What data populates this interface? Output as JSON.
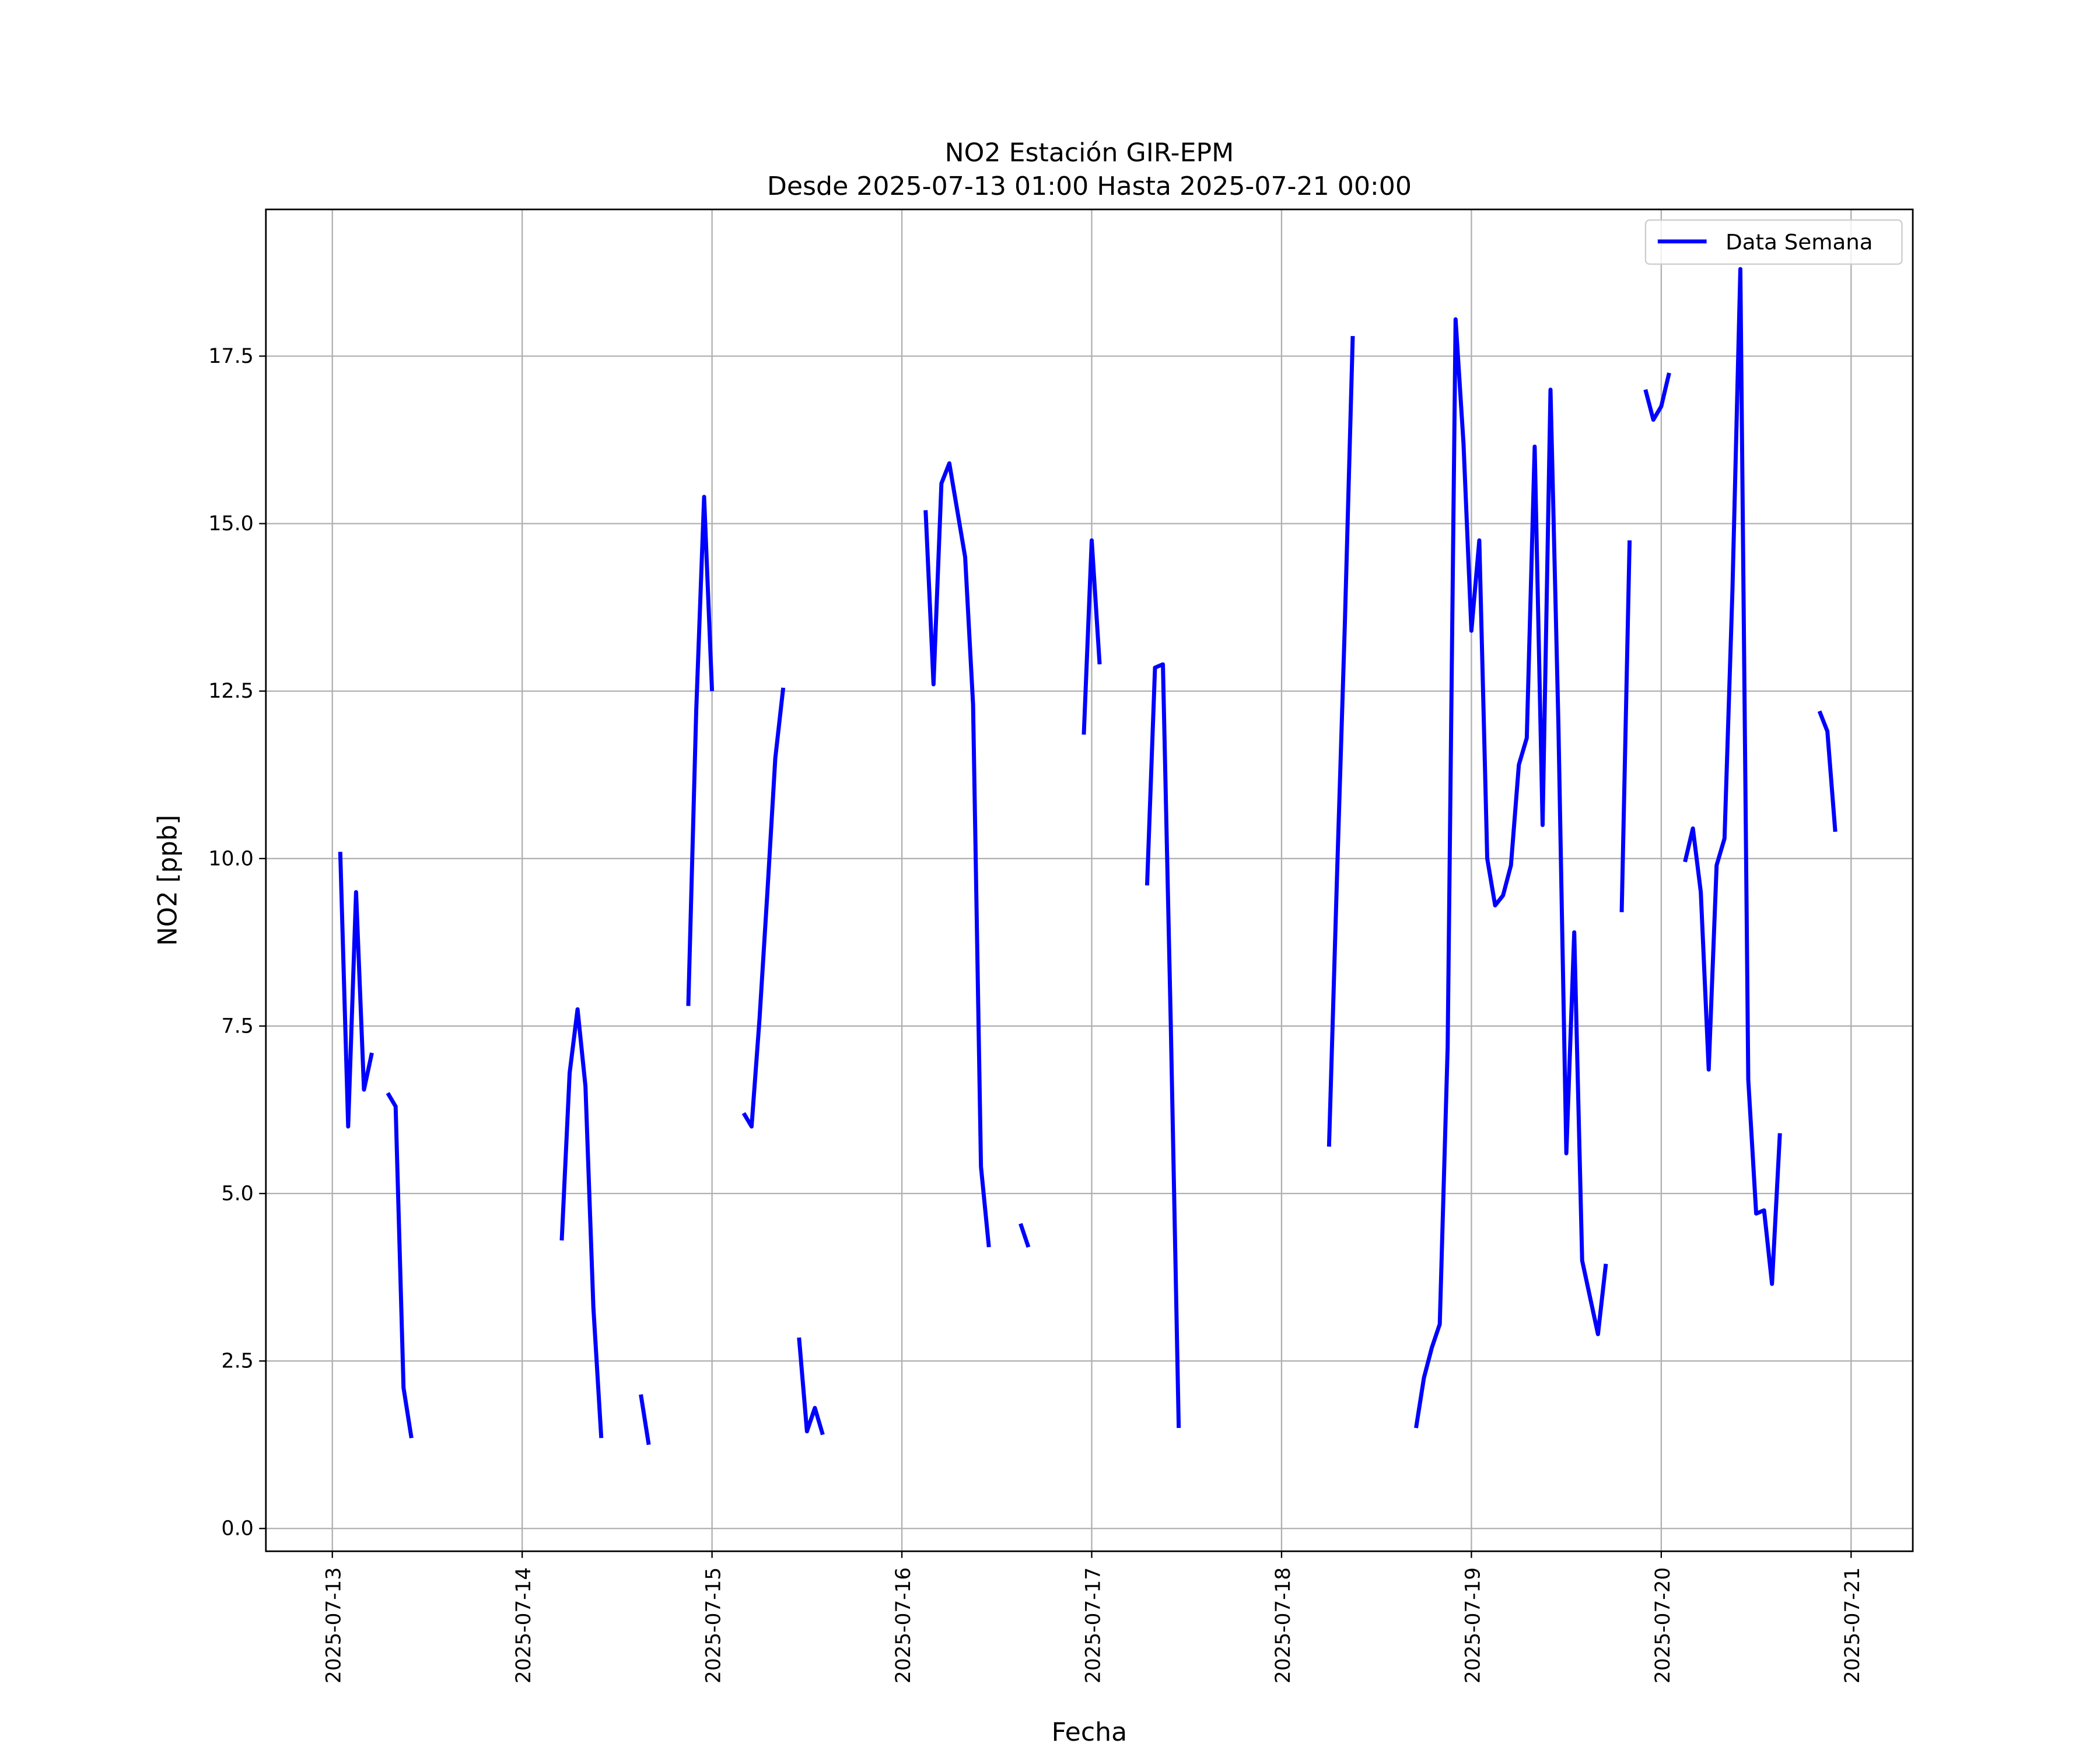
{
  "chart_data": {
    "type": "line",
    "title": "NO2 Estación GIR-EPM",
    "subtitle": "Desde 2025-07-13 01:00 Hasta 2025-07-21 00:00",
    "x_label": "Fecha",
    "y_label": "NO2 [ppb]",
    "grid": true,
    "legend": "upper right",
    "x": [
      "2025-07-13 01:00",
      "2025-07-13 02:00",
      "2025-07-13 03:00",
      "2025-07-13 04:00",
      "2025-07-13 05:00",
      "2025-07-13 06:00",
      "2025-07-13 07:00",
      "2025-07-13 08:00",
      "2025-07-13 09:00",
      "2025-07-13 10:00",
      "2025-07-13 11:00",
      "2025-07-14 05:00",
      "2025-07-14 06:00",
      "2025-07-14 07:00",
      "2025-07-14 08:00",
      "2025-07-14 09:00",
      "2025-07-14 10:00",
      "2025-07-14 11:00",
      "2025-07-14 15:00",
      "2025-07-14 16:00",
      "2025-07-14 17:00",
      "2025-07-14 21:00",
      "2025-07-14 22:00",
      "2025-07-14 23:00",
      "2025-07-15 00:00",
      "2025-07-15 01:00",
      "2025-07-15 04:00",
      "2025-07-15 05:00",
      "2025-07-15 06:00",
      "2025-07-15 07:00",
      "2025-07-15 08:00",
      "2025-07-15 09:00",
      "2025-07-15 10:00",
      "2025-07-15 11:00",
      "2025-07-15 12:00",
      "2025-07-15 13:00",
      "2025-07-15 14:00",
      "2025-07-15 15:00",
      "2025-07-16 03:00",
      "2025-07-16 04:00",
      "2025-07-16 05:00",
      "2025-07-16 06:00",
      "2025-07-16 07:00",
      "2025-07-16 08:00",
      "2025-07-16 09:00",
      "2025-07-16 10:00",
      "2025-07-16 11:00",
      "2025-07-16 12:00",
      "2025-07-16 15:00",
      "2025-07-16 16:00",
      "2025-07-16 17:00",
      "2025-07-16 23:00",
      "2025-07-17 00:00",
      "2025-07-17 01:00",
      "2025-07-17 02:00",
      "2025-07-17 07:00",
      "2025-07-17 08:00",
      "2025-07-17 09:00",
      "2025-07-17 10:00",
      "2025-07-17 11:00",
      "2025-07-17 12:00",
      "2025-07-18 06:00",
      "2025-07-18 07:00",
      "2025-07-18 08:00",
      "2025-07-18 09:00",
      "2025-07-18 10:00",
      "2025-07-18 17:00",
      "2025-07-18 18:00",
      "2025-07-18 19:00",
      "2025-07-18 20:00",
      "2025-07-18 21:00",
      "2025-07-18 22:00",
      "2025-07-18 23:00",
      "2025-07-19 00:00",
      "2025-07-19 01:00",
      "2025-07-19 02:00",
      "2025-07-19 03:00",
      "2025-07-19 04:00",
      "2025-07-19 05:00",
      "2025-07-19 06:00",
      "2025-07-19 07:00",
      "2025-07-19 08:00",
      "2025-07-19 09:00",
      "2025-07-19 10:00",
      "2025-07-19 11:00",
      "2025-07-19 12:00",
      "2025-07-19 13:00",
      "2025-07-19 14:00",
      "2025-07-19 15:00",
      "2025-07-19 16:00",
      "2025-07-19 17:00",
      "2025-07-19 18:00",
      "2025-07-19 19:00",
      "2025-07-19 20:00",
      "2025-07-19 21:00",
      "2025-07-19 22:00",
      "2025-07-19 23:00",
      "2025-07-20 00:00",
      "2025-07-20 01:00",
      "2025-07-20 02:00",
      "2025-07-20 03:00",
      "2025-07-20 04:00",
      "2025-07-20 05:00",
      "2025-07-20 06:00",
      "2025-07-20 07:00",
      "2025-07-20 08:00",
      "2025-07-20 09:00",
      "2025-07-20 10:00",
      "2025-07-20 11:00",
      "2025-07-20 12:00",
      "2025-07-20 13:00",
      "2025-07-20 14:00",
      "2025-07-20 15:00",
      "2025-07-20 16:00",
      "2025-07-20 20:00",
      "2025-07-20 21:00",
      "2025-07-20 22:00"
    ],
    "series": [
      {
        "name": "Data Semana",
        "color": "#0000ff",
        "values": [
          10.1,
          6.0,
          9.5,
          6.55,
          7.1,
          null,
          6.5,
          6.3,
          2.1,
          1.35,
          null,
          4.3,
          6.8,
          7.75,
          6.6,
          3.3,
          1.35,
          null,
          2.0,
          1.25,
          null,
          7.8,
          12.2,
          15.4,
          12.5,
          null,
          6.2,
          6.0,
          7.6,
          9.5,
          11.5,
          12.55,
          null,
          2.85,
          1.45,
          1.8,
          1.4,
          null,
          15.2,
          12.6,
          15.6,
          15.9,
          15.2,
          14.5,
          12.3,
          5.4,
          4.2,
          null,
          4.55,
          4.2,
          null,
          11.85,
          14.75,
          12.9,
          null,
          9.6,
          12.85,
          12.9,
          7.5,
          1.5,
          null,
          5.7,
          9.7,
          13.5,
          17.8,
          null,
          1.5,
          2.25,
          2.7,
          3.05,
          7.2,
          18.05,
          16.2,
          13.4,
          14.75,
          10.0,
          9.3,
          9.45,
          9.9,
          11.4,
          11.8,
          16.15,
          10.5,
          17.0,
          12.0,
          5.6,
          8.9,
          4.0,
          3.45,
          2.9,
          3.95,
          null,
          9.2,
          14.75,
          null,
          17.0,
          16.55,
          16.75,
          17.25,
          null,
          9.95,
          10.45,
          9.5,
          6.85,
          9.9,
          10.3,
          14.0,
          18.8,
          6.7,
          4.7,
          4.75,
          3.65,
          5.9,
          null,
          12.2,
          11.9,
          10.4
        ]
      }
    ],
    "xlim": [
      "2025-07-12 15:36",
      "2025-07-21 07:48"
    ],
    "xticks": [
      "2025-07-13",
      "2025-07-14",
      "2025-07-15",
      "2025-07-16",
      "2025-07-17",
      "2025-07-18",
      "2025-07-19",
      "2025-07-20",
      "2025-07-21"
    ],
    "ylim": [
      -0.34,
      19.69
    ],
    "yticks": [
      {
        "value": 0,
        "label": "0.0"
      },
      2.5,
      {
        "value": 5,
        "label": "5.0"
      },
      7.5,
      {
        "value": 10,
        "label": "10.0"
      },
      12.5,
      {
        "value": 15,
        "label": "15.0"
      },
      17.5
    ]
  }
}
